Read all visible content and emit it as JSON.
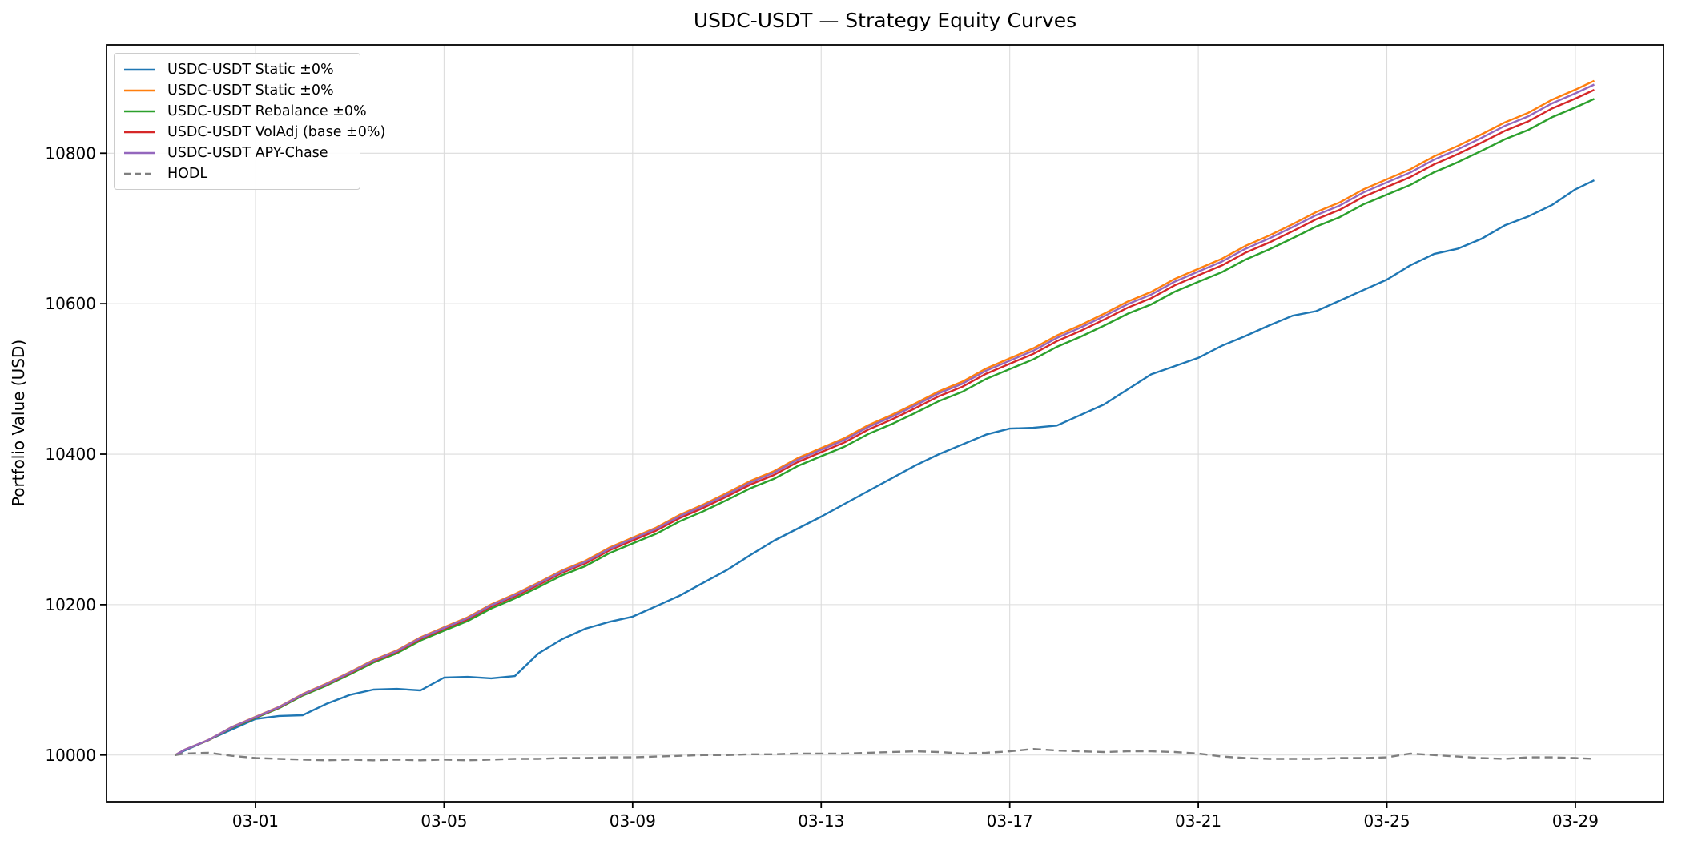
{
  "figure": {
    "title": "USDC-USDT — Strategy Equity Curves",
    "background": "#ffffff"
  },
  "chart_data": {
    "type": "line",
    "title": "USDC-USDT — Strategy Equity Curves",
    "xlabel": "",
    "ylabel": "Portfolio Value (USD)",
    "x_unit": "days since 03-01",
    "xlim": [
      -3.16,
      29.87
    ],
    "ylim": [
      9938,
      10944
    ],
    "grid": true,
    "grid_color": "#dcdcdc",
    "spine_color": "#000000",
    "legend_position": "upper-left",
    "xticks": [
      {
        "pos": 0,
        "label": "03-01"
      },
      {
        "pos": 4,
        "label": "03-05"
      },
      {
        "pos": 8,
        "label": "03-09"
      },
      {
        "pos": 12,
        "label": "03-13"
      },
      {
        "pos": 16,
        "label": "03-17"
      },
      {
        "pos": 20,
        "label": "03-21"
      },
      {
        "pos": 24,
        "label": "03-25"
      },
      {
        "pos": 28,
        "label": "03-29"
      }
    ],
    "yticks": [
      {
        "pos": 10000,
        "label": "10000"
      },
      {
        "pos": 10200,
        "label": "10200"
      },
      {
        "pos": 10400,
        "label": "10400"
      },
      {
        "pos": 10600,
        "label": "10600"
      },
      {
        "pos": 10800,
        "label": "10800"
      }
    ],
    "x": [
      -1.7,
      -1.5,
      -1.0,
      -0.5,
      0,
      0.5,
      1,
      1.5,
      2,
      2.5,
      3,
      3.5,
      4,
      4.5,
      5,
      5.5,
      6,
      6.5,
      7,
      7.5,
      8,
      8.5,
      9,
      9.5,
      10,
      10.5,
      11,
      11.5,
      12,
      12.5,
      13,
      13.5,
      14,
      14.5,
      15,
      15.5,
      16,
      16.5,
      17,
      17.5,
      18,
      18.5,
      19,
      19.5,
      20,
      20.5,
      21,
      21.5,
      22,
      22.5,
      23,
      23.5,
      24,
      24.5,
      25,
      25.5,
      26,
      26.5,
      27,
      27.5,
      28,
      28.4
    ],
    "series": [
      {
        "name": "USDC-USDT Static ±0%",
        "color": "#1f77b4",
        "style": "solid",
        "width": 2.4,
        "y": [
          10000,
          10006,
          10020,
          10034,
          10048,
          10052,
          10053,
          10068,
          10080,
          10087,
          10088,
          10086,
          10103,
          10104,
          10102,
          10105,
          10135,
          10154,
          10168,
          10177,
          10184,
          10198,
          10212,
          10229,
          10246,
          10266,
          10285,
          10301,
          10317,
          10334,
          10351,
          10368,
          10385,
          10400,
          10413,
          10426,
          10434,
          10435,
          10438,
          10452,
          10466,
          10486,
          10506,
          10517,
          10528,
          10544,
          10557,
          10571,
          10584,
          10590,
          10604,
          10618,
          10632,
          10651,
          10666,
          10673,
          10686,
          10704,
          10716,
          10731,
          10752,
          10764
        ]
      },
      {
        "name": "USDC-USDT Static ±0%",
        "color": "#ff7f0e",
        "style": "solid",
        "width": 2.4,
        "y": [
          10000.0,
          10007.2,
          10020.1,
          10037.4,
          10050.8,
          10064.1,
          10081.2,
          10094.9,
          10110.2,
          10126.3,
          10139.2,
          10156.5,
          10170.0,
          10183.2,
          10200.3,
          10214.0,
          10229.3,
          10245.4,
          10258.3,
          10275.6,
          10289.1,
          10302.4,
          10319.4,
          10333.1,
          10348.4,
          10364.5,
          10377.4,
          10394.7,
          10408.2,
          10421.5,
          10438.6,
          10452.2,
          10467.5,
          10483.6,
          10496.5,
          10513.8,
          10527.3,
          10540.6,
          10557.7,
          10571.4,
          10586.6,
          10602.7,
          10615.6,
          10632.9,
          10646.4,
          10659.7,
          10676.8,
          10690.4,
          10705.7,
          10721.7,
          10734.6,
          10751.9,
          10765.4,
          10778.7,
          10795.8,
          10809.5,
          10824.8,
          10840.9,
          10853.7,
          10871.0,
          10884.5,
          10896.3
        ]
      },
      {
        "name": "USDC-USDT Rebalance ±0%",
        "color": "#2ca02c",
        "style": "solid",
        "width": 2.4,
        "y": [
          10000.0,
          10007.0,
          10019.5,
          10036.4,
          10049.4,
          10062.3,
          10079.0,
          10092.3,
          10107.2,
          10122.9,
          10135.4,
          10152.3,
          10165.4,
          10178.2,
          10194.9,
          10208.2,
          10223.1,
          10238.8,
          10251.3,
          10268.2,
          10281.3,
          10294.2,
          10310.8,
          10324.1,
          10339.0,
          10354.7,
          10367.2,
          10384.1,
          10397.2,
          10410.1,
          10426.8,
          10440.0,
          10454.9,
          10470.6,
          10483.1,
          10500.0,
          10513.1,
          10526.0,
          10542.7,
          10556.0,
          10570.8,
          10586.5,
          10599.0,
          10615.9,
          10629.0,
          10641.9,
          10658.6,
          10672.0,
          10686.9,
          10702.5,
          10715.0,
          10731.9,
          10744.9,
          10757.9,
          10774.6,
          10787.9,
          10802.8,
          10818.5,
          10830.9,
          10847.8,
          10860.9,
          10872.3
        ]
      },
      {
        "name": "USDC-USDT VolAdj (base ±0%)",
        "color": "#d62728",
        "style": "solid",
        "width": 2.4,
        "y": [
          10000.0,
          10007.1,
          10019.8,
          10036.9,
          10050.1,
          10063.2,
          10080.1,
          10093.6,
          10108.7,
          10124.6,
          10137.3,
          10154.4,
          10167.7,
          10180.7,
          10197.6,
          10211.1,
          10226.2,
          10242.1,
          10254.8,
          10271.9,
          10285.2,
          10298.3,
          10315.1,
          10328.6,
          10343.7,
          10359.6,
          10372.3,
          10389.4,
          10402.7,
          10415.8,
          10432.7,
          10446.1,
          10461.2,
          10477.1,
          10489.8,
          10506.9,
          10520.2,
          10533.3,
          10550.2,
          10563.7,
          10578.7,
          10594.6,
          10607.3,
          10624.4,
          10637.7,
          10650.8,
          10667.7,
          10681.2,
          10696.3,
          10712.1,
          10724.8,
          10741.9,
          10755.2,
          10768.3,
          10785.2,
          10798.7,
          10813.8,
          10829.7,
          10842.3,
          10859.4,
          10872.7,
          10884.3
        ]
      },
      {
        "name": "USDC-USDT APY-Chase",
        "color": "#9467bd",
        "style": "solid",
        "width": 2.4,
        "y": [
          10000.0,
          10007.1,
          10020.0,
          10037.2,
          10050.5,
          10063.7,
          10080.7,
          10094.3,
          10109.6,
          10125.6,
          10138.4,
          10155.6,
          10169.0,
          10182.1,
          10199.2,
          10212.8,
          10228.0,
          10244.0,
          10256.8,
          10274.0,
          10287.5,
          10300.7,
          10317.6,
          10331.2,
          10346.4,
          10362.4,
          10375.3,
          10392.5,
          10405.9,
          10419.1,
          10436.1,
          10449.6,
          10464.9,
          10480.9,
          10493.7,
          10510.9,
          10524.3,
          10537.5,
          10554.5,
          10568.2,
          10583.3,
          10599.3,
          10612.1,
          10629.3,
          10642.7,
          10655.9,
          10673.0,
          10686.6,
          10701.8,
          10717.7,
          10730.5,
          10747.8,
          10761.2,
          10774.4,
          10791.4,
          10805.0,
          10820.2,
          10836.3,
          10849.0,
          10866.2,
          10879.6,
          10891.3
        ]
      },
      {
        "name": "HODL",
        "color": "#7f7f7f",
        "style": "dashed",
        "width": 2.4,
        "y": [
          10000,
          10002,
          10003,
          9999,
          9996,
          9995,
          9994,
          9993,
          9994,
          9993,
          9994,
          9993,
          9994,
          9993,
          9994,
          9995,
          9995,
          9996,
          9996,
          9997,
          9997,
          9998,
          9999,
          10000,
          10000,
          10001,
          10001,
          10002,
          10002,
          10002,
          10003,
          10004,
          10005,
          10004,
          10002,
          10003,
          10005,
          10008,
          10006,
          10005,
          10004,
          10005,
          10005,
          10004,
          10002,
          9998,
          9996,
          9995,
          9995,
          9995,
          9996,
          9996,
          9997,
          10002,
          10000,
          9998,
          9996,
          9995,
          9997,
          9997,
          9996,
          9995
        ]
      }
    ]
  }
}
